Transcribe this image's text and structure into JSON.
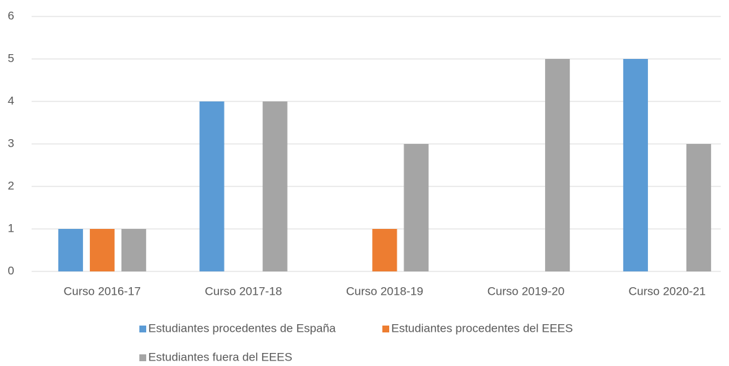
{
  "chart_data": {
    "type": "bar",
    "categories": [
      "Curso 2016-17",
      "Curso 2017-18",
      "Curso 2018-19",
      "Curso 2019-20",
      "Curso 2020-21"
    ],
    "series": [
      {
        "name": "Estudiantes procedentes de España",
        "color": "#5b9bd5",
        "values": [
          1,
          4,
          0,
          0,
          5
        ]
      },
      {
        "name": "Estudiantes procedentes del EEES",
        "color": "#ed7d31",
        "values": [
          1,
          0,
          1,
          0,
          0
        ]
      },
      {
        "name": "Estudiantes fuera del EEES",
        "color": "#a5a5a5",
        "values": [
          1,
          4,
          3,
          5,
          3
        ]
      }
    ],
    "ylim": [
      0,
      6
    ],
    "yticks": [
      0,
      1,
      2,
      3,
      4,
      5,
      6
    ],
    "grid": true,
    "legend": "bottom"
  }
}
